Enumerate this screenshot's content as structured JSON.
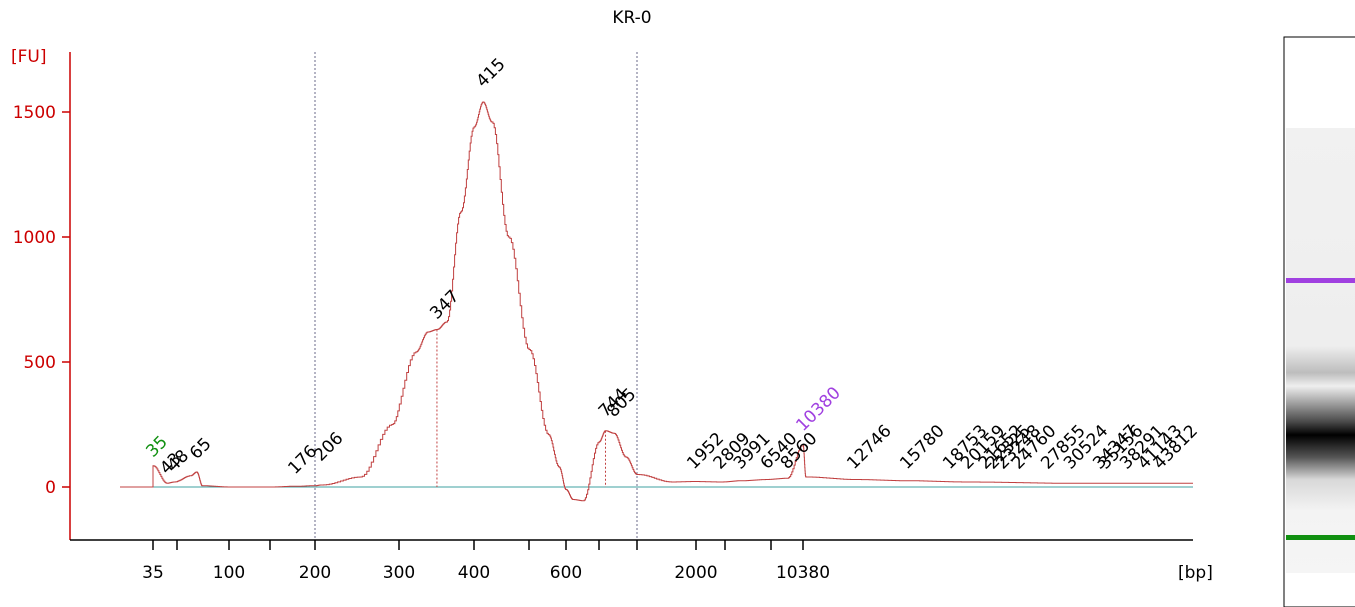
{
  "chart_data": {
    "type": "line",
    "title": "KR-0",
    "ylabel": "[FU]",
    "xlabel": "[bp]",
    "ylim": [
      -200,
      1700
    ],
    "y_ticks": [
      0,
      500,
      1000,
      1500
    ],
    "x_ticks": [
      "35",
      "100",
      "200",
      "300",
      "400",
      "600",
      "2000",
      "10380"
    ],
    "x_tick_marks": [
      "35",
      "50",
      "100",
      "150",
      "200",
      "300",
      "400",
      "500",
      "600",
      "700",
      "1000",
      "2000",
      "3000",
      "7000",
      "10380"
    ],
    "region_markers": [
      "200",
      "1000"
    ],
    "markers": {
      "lower": "35",
      "upper": "10380"
    },
    "series": [
      {
        "x": [
          "20",
          "35",
          "35",
          "43",
          "48",
          "60",
          "65",
          "70",
          "100",
          "150",
          "176",
          "200",
          "206",
          "250",
          "290",
          "320",
          "335",
          "347",
          "360",
          "380",
          "400",
          "415",
          "430",
          "460",
          "500",
          "550",
          "580",
          "600",
          "620",
          "650",
          "700",
          "744",
          "805",
          "900",
          "1000",
          "1500",
          "1952",
          "2809",
          "3991",
          "6540",
          "8560",
          "10380",
          "10500",
          "12746",
          "15780",
          "20000",
          "30000",
          "50000"
        ],
        "values": [
          0,
          0,
          85,
          15,
          20,
          45,
          60,
          5,
          0,
          0,
          3,
          5,
          8,
          40,
          250,
          540,
          620,
          630,
          660,
          1100,
          1440,
          1540,
          1460,
          1000,
          550,
          210,
          80,
          -10,
          -50,
          -55,
          180,
          225,
          215,
          120,
          50,
          20,
          22,
          20,
          25,
          30,
          35,
          170,
          40,
          30,
          25,
          20,
          15,
          15
        ]
      }
    ],
    "peak_labels": [
      "35",
      "43",
      "48",
      "65",
      "176",
      "206",
      "347",
      "415",
      "744",
      "805",
      "1952",
      "2809",
      "3991",
      "6540",
      "8560",
      "10380",
      "12746",
      "15780",
      "18753",
      "20159",
      "21652",
      "22325",
      "23248",
      "24760",
      "27855",
      "30524",
      "34347",
      "35156",
      "38291",
      "41143",
      "43812"
    ],
    "gel": {
      "upper_marker_color": "#a040e0",
      "lower_marker_color": "#109010"
    },
    "colors": {
      "trace": "#c04040",
      "axis": "#cc0000",
      "baseline": "#3fa0a0",
      "upper_marker": "#a040e0",
      "lower_marker": "#109010"
    }
  }
}
